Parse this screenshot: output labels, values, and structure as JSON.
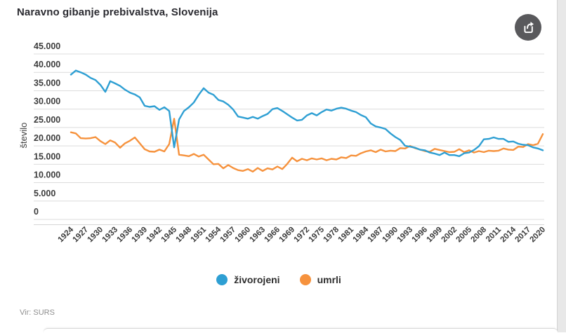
{
  "header": {
    "title": "Naravno gibanje prebivalstva, Slovenija"
  },
  "footer": {
    "source": "Vir: SURS"
  },
  "colors": {
    "births": "#2e9fd3",
    "deaths": "#f6923d",
    "share_button": "#59595c"
  },
  "chart_data": {
    "type": "line",
    "title": "Naravno gibanje prebivalstva, Slovenija",
    "xlabel": "",
    "ylabel": "število",
    "ylim": [
      0,
      45000
    ],
    "grid": true,
    "legend_position": "bottom",
    "y_ticks": [
      0,
      5000,
      10000,
      15000,
      20000,
      25000,
      30000,
      35000,
      40000,
      45000
    ],
    "y_tick_labels": [
      "0",
      "5.000",
      "10.000",
      "15.000",
      "20.000",
      "25.000",
      "30.000",
      "35.000",
      "40.000",
      "45.000"
    ],
    "x_tick_labels": [
      "1924",
      "1927",
      "1930",
      "1933",
      "1936",
      "1939",
      "1942",
      "1945",
      "1948",
      "1951",
      "1954",
      "1957",
      "1960",
      "1963",
      "1966",
      "1969",
      "1972",
      "1975",
      "1978",
      "1981",
      "1984",
      "1987",
      "1990",
      "1993",
      "1996",
      "1999",
      "2002",
      "2005",
      "2008",
      "2011",
      "2014",
      "2017",
      "2020"
    ],
    "x": [
      1924,
      1925,
      1926,
      1927,
      1928,
      1929,
      1930,
      1931,
      1932,
      1933,
      1934,
      1935,
      1936,
      1937,
      1938,
      1939,
      1940,
      1941,
      1942,
      1943,
      1944,
      1945,
      1946,
      1947,
      1948,
      1949,
      1950,
      1951,
      1952,
      1953,
      1954,
      1955,
      1956,
      1957,
      1958,
      1959,
      1960,
      1961,
      1962,
      1963,
      1964,
      1965,
      1966,
      1967,
      1968,
      1969,
      1970,
      1971,
      1972,
      1973,
      1974,
      1975,
      1976,
      1977,
      1978,
      1979,
      1980,
      1981,
      1982,
      1983,
      1984,
      1985,
      1986,
      1987,
      1988,
      1989,
      1990,
      1991,
      1992,
      1993,
      1994,
      1995,
      1996,
      1997,
      1998,
      1999,
      2000,
      2001,
      2002,
      2003,
      2004,
      2005,
      2006,
      2007,
      2008,
      2009,
      2010,
      2011,
      2012,
      2013,
      2014,
      2015,
      2016,
      2017,
      2018,
      2019,
      2020
    ],
    "series": [
      {
        "name": "živorojeni",
        "color": "#2e9fd3",
        "values": [
          39400,
          40500,
          40000,
          39400,
          38500,
          37900,
          36600,
          34700,
          37600,
          37000,
          36300,
          35300,
          34500,
          34000,
          33200,
          30900,
          30600,
          30800,
          29800,
          30500,
          29500,
          19600,
          27200,
          29500,
          30500,
          31800,
          33900,
          35700,
          34500,
          33900,
          32500,
          32100,
          31200,
          29900,
          28000,
          27700,
          27400,
          27900,
          27400,
          28100,
          28700,
          30000,
          30300,
          29500,
          28600,
          27700,
          26900,
          27100,
          28300,
          28900,
          28300,
          29200,
          29900,
          29600,
          30100,
          30400,
          30100,
          29600,
          29200,
          28400,
          27800,
          26100,
          25300,
          25000,
          24600,
          23400,
          22400,
          21600,
          20000,
          19800,
          19500,
          19000,
          18800,
          18200,
          17900,
          17500,
          18200,
          17500,
          17500,
          17200,
          18000,
          18200,
          18900,
          19900,
          21800,
          21900,
          22300,
          21900,
          21900,
          21100,
          21200,
          20600,
          20300,
          20200,
          19600,
          19300,
          18800
        ]
      },
      {
        "name": "umrli",
        "color": "#f6923d",
        "values": [
          23700,
          23400,
          22100,
          22000,
          22100,
          22400,
          21300,
          20500,
          21500,
          20900,
          19500,
          20700,
          21400,
          22300,
          20700,
          19100,
          18500,
          18400,
          19000,
          18500,
          20500,
          27400,
          17600,
          17400,
          17200,
          17800,
          17100,
          17600,
          16300,
          15000,
          15100,
          13900,
          14800,
          14000,
          13400,
          13200,
          13700,
          13000,
          14000,
          13200,
          13900,
          13600,
          14400,
          13700,
          15100,
          16800,
          15800,
          16500,
          16100,
          16600,
          16300,
          16600,
          16100,
          16500,
          16300,
          16900,
          16700,
          17400,
          17300,
          18000,
          18500,
          18800,
          18300,
          19000,
          18500,
          18700,
          18600,
          19400,
          19300,
          20000,
          19400,
          19000,
          18600,
          18400,
          19200,
          18900,
          18600,
          18300,
          18400,
          19100,
          18300,
          18800,
          18200,
          18600,
          18300,
          18700,
          18600,
          18700,
          19300,
          19000,
          18900,
          19800,
          19700,
          20500,
          20200,
          20600,
          23200
        ]
      }
    ]
  }
}
